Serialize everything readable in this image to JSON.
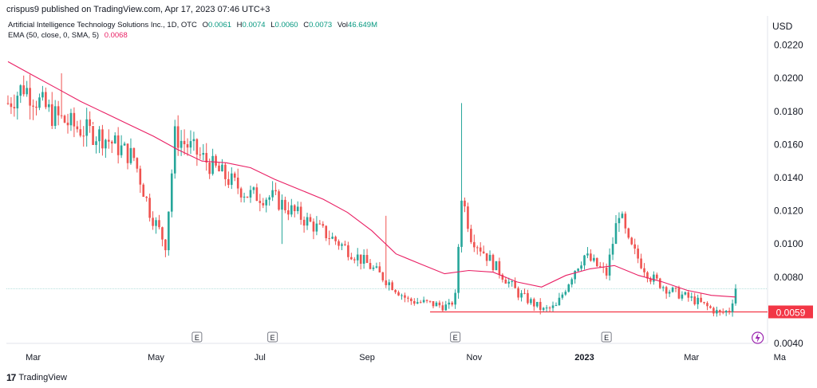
{
  "header": {
    "published": "crispus9 published on TradingView.com, Apr 17, 2023 07:46 UTC+3"
  },
  "legend": {
    "symbol": "Artificial Intelligence Technology Solutions Inc., 1D, OTC",
    "o_label": "O",
    "o_value": "0.0061",
    "h_label": "H",
    "h_value": "0.0074",
    "l_label": "L",
    "l_value": "0.0060",
    "c_label": "C",
    "c_value": "0.0073",
    "vol_label": "Vol",
    "vol_value": "46.649M",
    "ema_label": "EMA (50, close, 0, SMA, 5)",
    "ema_value": "0.0068"
  },
  "currency": "USD",
  "footer": {
    "logo": "17",
    "brand": "TradingView"
  },
  "colors": {
    "up": "#26a69a",
    "down": "#ef5350",
    "ema": "#e91e63",
    "support": "#f23645",
    "last_price_line": "#b2dfdb",
    "badge": "#f23645"
  },
  "chart_data": {
    "type": "candlestick",
    "ylim": [
      0.004,
      0.0228
    ],
    "y_ticks": [
      "0.0220",
      "0.0200",
      "0.0180",
      "0.0160",
      "0.0140",
      "0.0120",
      "0.0100",
      "0.0080",
      "0.0060",
      "0.0040"
    ],
    "x_ticks": [
      "Mar",
      "May",
      "Jul",
      "Sep",
      "Nov",
      "2023",
      "Mar",
      "Ma"
    ],
    "earnings_markers": [
      "E",
      "E",
      "E",
      "E"
    ],
    "last_price_badge": "0.0059",
    "support_level": 0.0059,
    "last_close": 0.0073,
    "ema": [
      0.021,
      0.0202,
      0.0194,
      0.0186,
      0.0179,
      0.0172,
      0.0165,
      0.0157,
      0.015,
      0.0149,
      0.0146,
      0.0139,
      0.0133,
      0.0127,
      0.0119,
      0.0108,
      0.0094,
      0.0088,
      0.0082,
      0.0084,
      0.0083,
      0.0077,
      0.0074,
      0.0081,
      0.0085,
      0.0087,
      0.0081,
      0.0077,
      0.0072,
      0.0069,
      0.0068
    ],
    "anchors": [
      [
        0,
        0.0185
      ],
      [
        5,
        0.0195
      ],
      [
        14,
        0.0178
      ],
      [
        22,
        0.017
      ],
      [
        30,
        0.0165
      ],
      [
        40,
        0.0152
      ],
      [
        45,
        0.012
      ],
      [
        50,
        0.01
      ],
      [
        53,
        0.0165
      ],
      [
        58,
        0.0158
      ],
      [
        66,
        0.0145
      ],
      [
        76,
        0.013
      ],
      [
        84,
        0.0128
      ],
      [
        94,
        0.0115
      ],
      [
        104,
        0.0102
      ],
      [
        114,
        0.0088
      ],
      [
        122,
        0.0075
      ],
      [
        127,
        0.0066
      ],
      [
        134,
        0.0064
      ],
      [
        140,
        0.0062
      ],
      [
        142,
        0.0068
      ],
      [
        144,
        0.013
      ],
      [
        147,
        0.0105
      ],
      [
        154,
        0.0088
      ],
      [
        162,
        0.007
      ],
      [
        170,
        0.006
      ],
      [
        174,
        0.0062
      ],
      [
        180,
        0.0085
      ],
      [
        183,
        0.0093
      ],
      [
        190,
        0.0082
      ],
      [
        194,
        0.012
      ],
      [
        197,
        0.01
      ],
      [
        204,
        0.008
      ],
      [
        210,
        0.0072
      ],
      [
        218,
        0.0066
      ],
      [
        226,
        0.0058
      ],
      [
        229,
        0.006
      ],
      [
        231,
        0.0073
      ]
    ],
    "spikes": [
      [
        144,
        0.0185
      ],
      [
        120,
        0.0117
      ],
      [
        17,
        0.0203
      ],
      [
        27,
        0.0172
      ],
      [
        50,
        0.0092
      ],
      [
        31,
        0.0152
      ],
      [
        87,
        0.01
      ]
    ]
  }
}
